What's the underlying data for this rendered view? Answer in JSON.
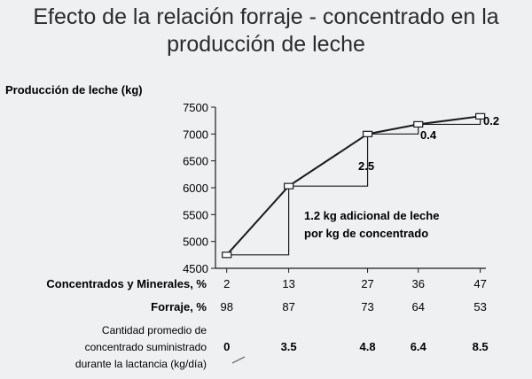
{
  "title_lines": [
    "Efecto de la relación forraje - concentrado en la",
    "producción de leche"
  ],
  "chart_data": {
    "type": "line",
    "title": "Efecto de la relación forraje - concentrado en la producción de leche",
    "ylabel": "Producción de leche (kg)",
    "ylim": [
      4500,
      7500
    ],
    "yticks": [
      "7500",
      "7000",
      "6500",
      "6000",
      "5500",
      "5000",
      "4500"
    ],
    "ytick_values": [
      7500,
      7000,
      6500,
      6000,
      5500,
      5000,
      4500
    ],
    "x": [
      2,
      13,
      27,
      36,
      47
    ],
    "xlim": [
      0,
      48
    ],
    "series": [
      {
        "values": [
          4750,
          6030,
          7000,
          7180,
          7330
        ]
      }
    ],
    "rows": [
      {
        "label": "Concentrados y Minerales, %",
        "values": [
          "2",
          "13",
          "27",
          "36",
          "47"
        ]
      },
      {
        "label": "Forraje, %",
        "values": [
          "98",
          "87",
          "73",
          "64",
          "53"
        ]
      }
    ],
    "concentrate_label_lines": [
      "Cantidad promedio de",
      "concentrado suministrado",
      "durante la lactancia (kg/día)"
    ],
    "concentrate_values": [
      "0",
      "3.5",
      "4.8",
      "6.4",
      "8.5"
    ],
    "annotations": {
      "seg1_line1": "1.2 kg adicional de leche",
      "seg1_line2": "por kg de concentrado",
      "seg2": "2.5",
      "seg3": "0.4",
      "seg4": "0.2"
    },
    "colors": {
      "line": "#1b1b1b",
      "marker_fill": "#ffffff",
      "background": "#eef0f2"
    }
  }
}
